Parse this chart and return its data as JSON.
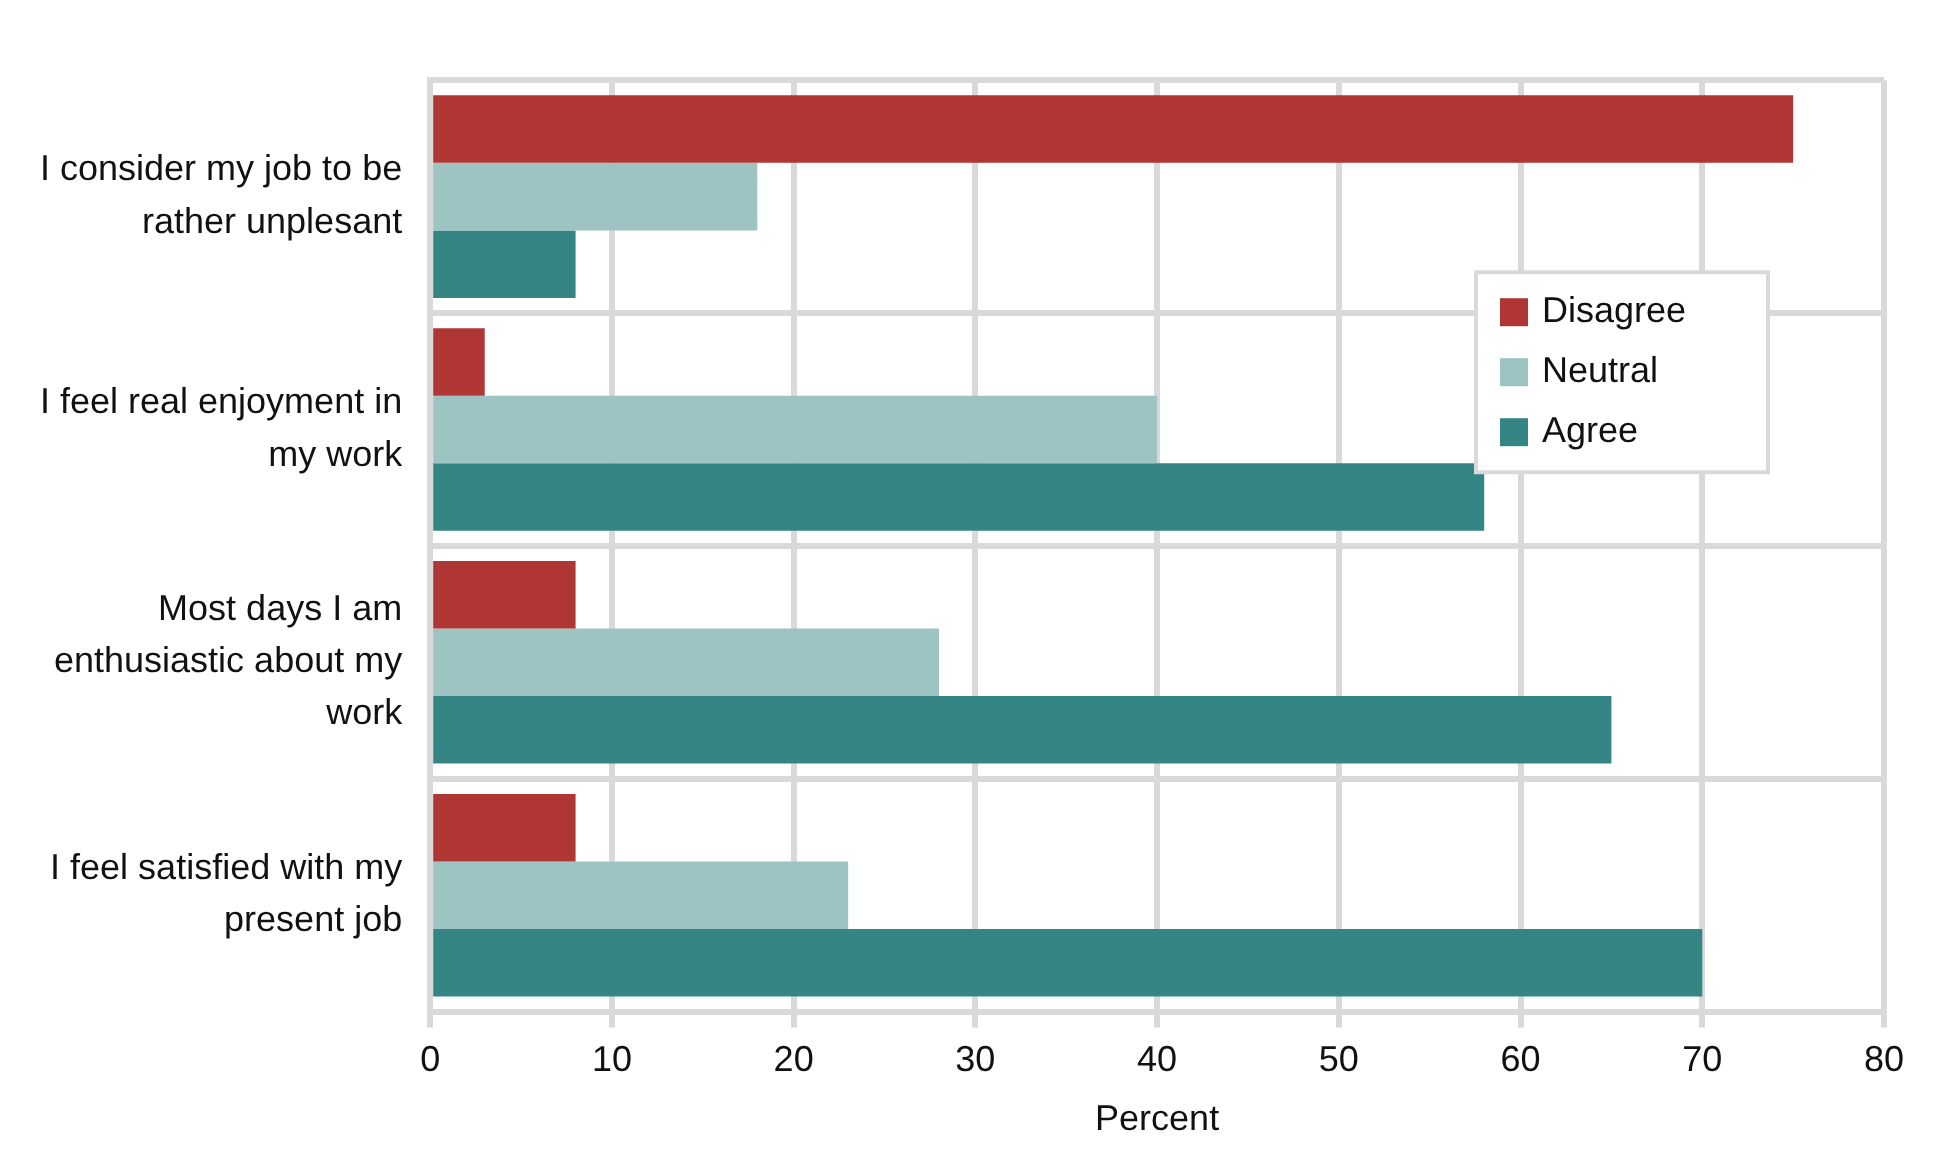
{
  "chart_data": {
    "type": "bar",
    "orientation": "horizontal",
    "xlabel": "Percent",
    "categories": [
      "I consider my job to be rather unplesant",
      "I feel real enjoyment in my work",
      "Most days I am enthusiastic about my work",
      "I feel satisfied with my present job"
    ],
    "series": [
      {
        "name": "Disagree",
        "color": "#b03535",
        "values": [
          75,
          3,
          8,
          8
        ]
      },
      {
        "name": "Neutral",
        "color": "#9dc3c3",
        "values": [
          18,
          40,
          28,
          23
        ]
      },
      {
        "name": "Agree",
        "color": "#358585",
        "values": [
          8,
          58,
          65,
          70
        ]
      }
    ],
    "xlim": [
      0,
      80
    ],
    "xticks": [
      0,
      10,
      20,
      30,
      40,
      50,
      60,
      70,
      80
    ],
    "grid": true,
    "legend": "top right"
  }
}
